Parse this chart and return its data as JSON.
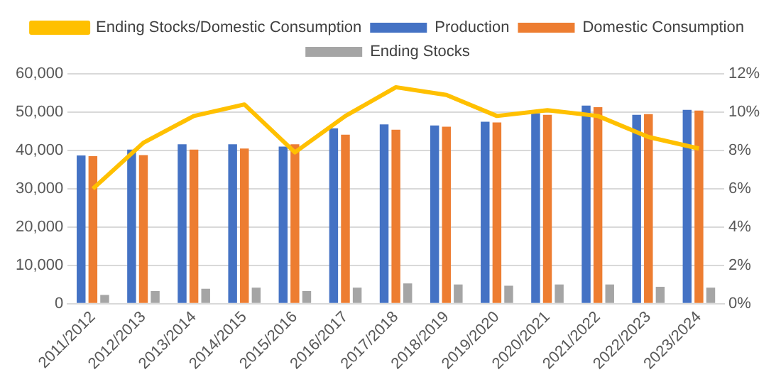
{
  "chart_data": {
    "type": "bar",
    "categories": [
      "2011/2012",
      "2012/2013",
      "2013/2014",
      "2014/2015",
      "2015/2016",
      "2016/2017",
      "2017/2018",
      "2018/2019",
      "2019/2020",
      "2020/2021",
      "2021/2022",
      "2022/2023",
      "2023/2024"
    ],
    "series": [
      {
        "name": "Production",
        "color": "#4472c4",
        "values": [
          38700,
          40200,
          41600,
          41600,
          41000,
          45800,
          46800,
          46500,
          47500,
          49700,
          51700,
          49300,
          50600
        ]
      },
      {
        "name": "Domestic Consumption",
        "color": "#ed7d31",
        "values": [
          38500,
          38800,
          40200,
          40500,
          41600,
          44100,
          45400,
          46200,
          47300,
          49300,
          51300,
          49500,
          50400
        ]
      },
      {
        "name": "Ending Stocks",
        "color": "#a5a5a5",
        "values": [
          2300,
          3300,
          3900,
          4200,
          3300,
          4200,
          5300,
          5000,
          4700,
          5000,
          5000,
          4400,
          4200
        ]
      },
      {
        "name": "Ending Stocks/Domestic Consumption",
        "type": "line",
        "axis": "y2",
        "color": "#ffc000",
        "values": [
          6.0,
          8.4,
          9.8,
          10.4,
          7.9,
          9.8,
          11.3,
          10.9,
          9.8,
          10.1,
          9.8,
          8.7,
          8.1
        ]
      }
    ],
    "ylim": [
      0,
      60000
    ],
    "yticks": [
      {
        "value": 0,
        "label": "0"
      },
      {
        "value": 10000,
        "label": "10,000"
      },
      {
        "value": 20000,
        "label": "20,000"
      },
      {
        "value": 30000,
        "label": "30,000"
      },
      {
        "value": 40000,
        "label": "40,000"
      },
      {
        "value": 50000,
        "label": "50,000"
      },
      {
        "value": 60000,
        "label": "60,000"
      }
    ],
    "y2lim": [
      0,
      12
    ],
    "y2ticks": [
      {
        "value": 0,
        "label": "0%"
      },
      {
        "value": 2,
        "label": "2%"
      },
      {
        "value": 4,
        "label": "4%"
      },
      {
        "value": 6,
        "label": "6%"
      },
      {
        "value": 8,
        "label": "8%"
      },
      {
        "value": 10,
        "label": "10%"
      },
      {
        "value": 12,
        "label": "12%"
      }
    ],
    "grid": "y",
    "legend": "top",
    "marker": "none",
    "line_style": "solid"
  }
}
